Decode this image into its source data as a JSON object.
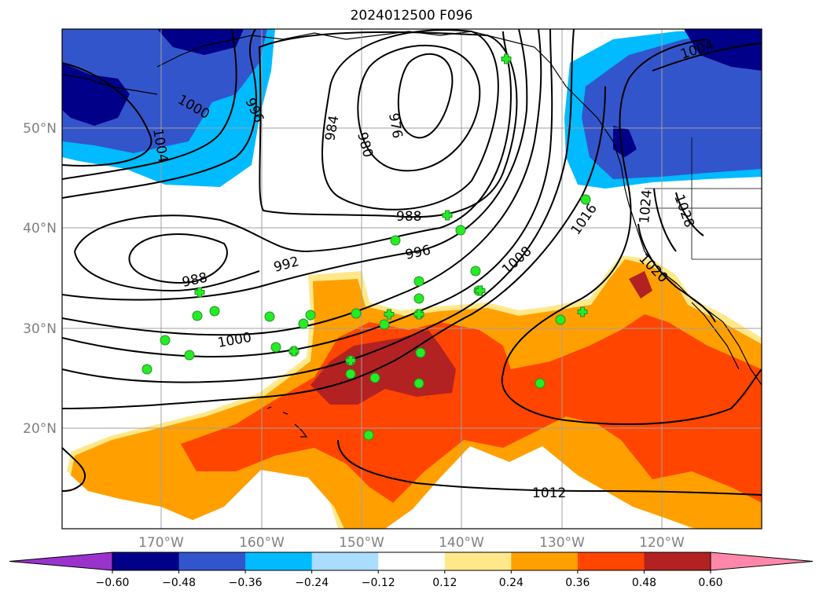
{
  "title": "2024012500 F096",
  "map": {
    "lat_labels": [
      "50°N",
      "40°N",
      "30°N",
      "20°N"
    ],
    "lon_labels": [
      "170°W",
      "160°W",
      "150°W",
      "140°W",
      "130°W",
      "120°W"
    ],
    "isobar_labels": [
      "1004",
      "1000",
      "996",
      "984",
      "980",
      "976",
      "988",
      "996",
      "1016",
      "1024",
      "1028",
      "1004",
      "988",
      "992",
      "1008",
      "1020",
      "1000",
      "1012"
    ],
    "colors": {
      "ocean_background": "#ffffff",
      "grid": "#a0a0a0",
      "isobar": "#000000",
      "station_point": "#22ee22",
      "station_edge": "#2a8a2a"
    },
    "station_markers": {
      "circle_count": 28,
      "cross_count": 8
    }
  },
  "colorbar": {
    "ticks": [
      "−0.60",
      "−0.48",
      "−0.36",
      "−0.24",
      "−0.12",
      "0.12",
      "0.24",
      "0.36",
      "0.48",
      "0.60"
    ],
    "colors": [
      "#9933cc",
      "#000088",
      "#3355cc",
      "#00bbff",
      "#aaddff",
      "#ffffff",
      "#ffe88a",
      "#ffa000",
      "#ff4500",
      "#b22222",
      "#ff88aa"
    ]
  }
}
